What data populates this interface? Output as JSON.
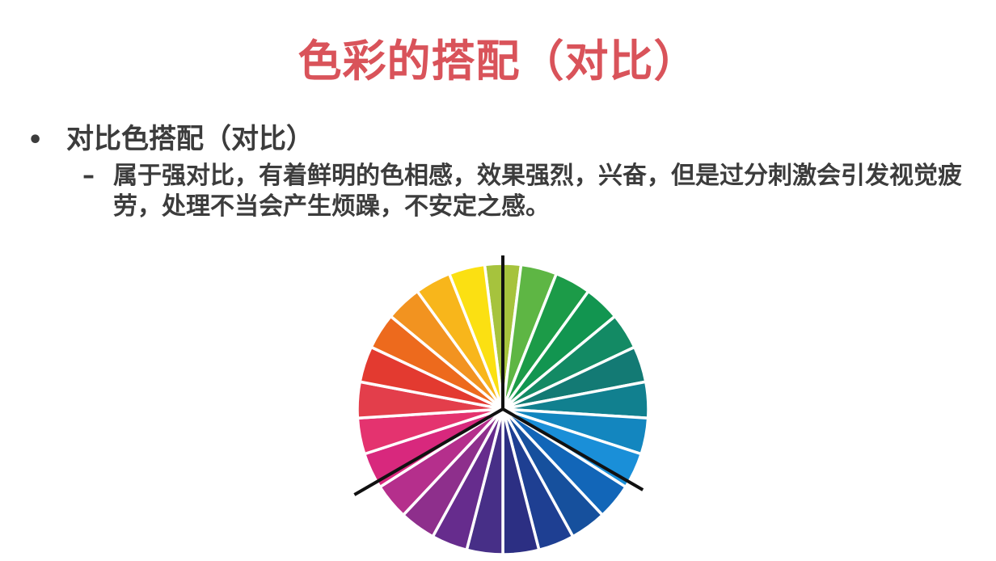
{
  "slide": {
    "title": "色彩的搭配（对比）",
    "bullet": {
      "marker": "•",
      "text": "对比色搭配（对比）"
    },
    "sub_bullet": {
      "marker": "–",
      "text": "属于强对比，有着鲜明的色相感，效果强烈，兴奋，但是过分刺激会引发视觉疲劳，处理不当会产生烦躁，不安定之感。"
    }
  },
  "color_wheel": {
    "segment_colors": [
      "#a6c33d",
      "#5eb644",
      "#1c9b48",
      "#129550",
      "#138a64",
      "#137a74",
      "#11808f",
      "#1386bf",
      "#1a8fd8",
      "#1266b8",
      "#16509d",
      "#1e3f92",
      "#2c2f83",
      "#472f87",
      "#662c8d",
      "#8e2f8c",
      "#b52f8c",
      "#d8287d",
      "#e4336f",
      "#e33e4b",
      "#e33a30",
      "#ed6a1d",
      "#f29320",
      "#f8b61b",
      "#fbe012"
    ],
    "separator_color": "#ffffff",
    "pointer_color": "#111111"
  }
}
